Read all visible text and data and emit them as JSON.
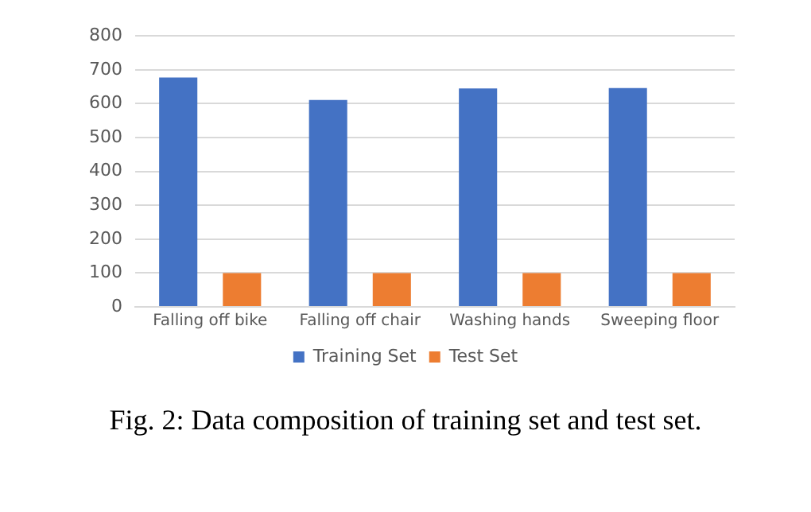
{
  "chart_data": {
    "type": "bar",
    "categories": [
      "Falling off bike",
      "Falling off chair",
      "Washing hands",
      "Sweeping floor"
    ],
    "series": [
      {
        "name": "Training Set",
        "color": "#4472c4",
        "values": [
          677,
          611,
          645,
          646
        ]
      },
      {
        "name": "Test Set",
        "color": "#ed7d31",
        "values": [
          100,
          100,
          100,
          100
        ]
      }
    ],
    "ylim": [
      0,
      800
    ],
    "yticks": [
      0,
      100,
      200,
      300,
      400,
      500,
      600,
      700,
      800
    ],
    "grid": "y",
    "legend": "bottom",
    "annotations": [
      "Fig. 2: Data composition of training set and test set."
    ]
  }
}
